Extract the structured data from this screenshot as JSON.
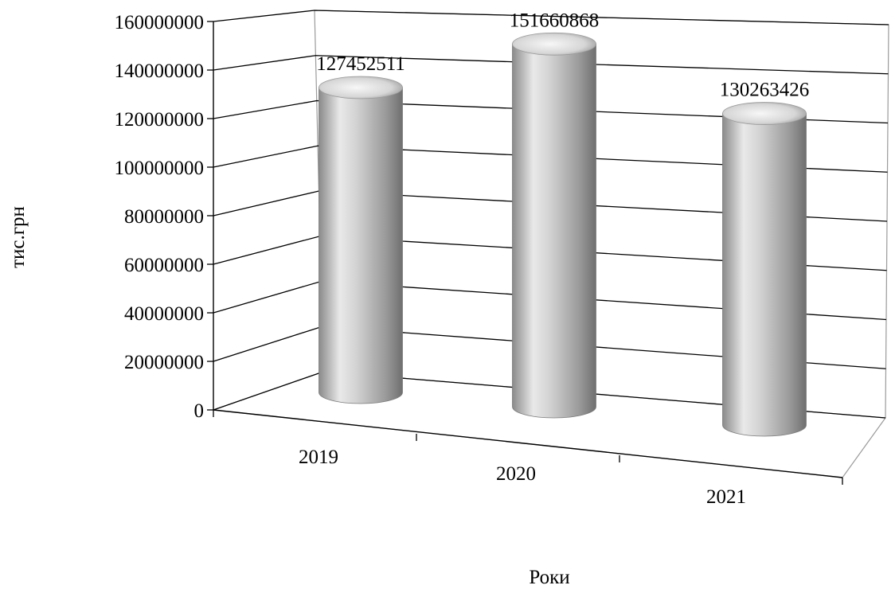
{
  "chart_data": {
    "type": "bar",
    "style": "3d-cylinder",
    "categories": [
      "2019",
      "2020",
      "2021"
    ],
    "values": [
      127452511,
      151660868,
      130263426
    ],
    "data_labels": [
      "127452511",
      "151660868",
      "130263426"
    ],
    "y_ticks": [
      "0",
      "20000000",
      "40000000",
      "60000000",
      "80000000",
      "100000000",
      "120000000",
      "140000000",
      "160000000"
    ],
    "ylim": [
      0,
      160000000
    ],
    "xlabel": "Роки",
    "ylabel": "тис.грн",
    "grid": true,
    "legend": "none",
    "bar_color": "#b3b3b3"
  }
}
